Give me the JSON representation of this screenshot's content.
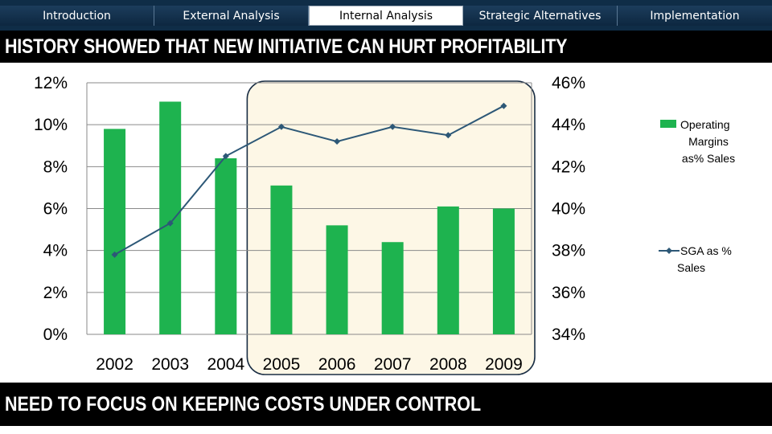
{
  "nav": {
    "tabs": [
      {
        "label": "Introduction",
        "active": false
      },
      {
        "label": "External Analysis",
        "active": false
      },
      {
        "label": "Internal Analysis",
        "active": true
      },
      {
        "label": "Strategic Alternatives",
        "active": false
      },
      {
        "label": "Implementation",
        "active": false
      }
    ]
  },
  "slide": {
    "title": "HISTORY SHOWED THAT NEW INITIATIVE CAN HURT PROFITABILITY",
    "footer": "NEED TO FOCUS ON KEEPING COSTS UNDER CONTROL"
  },
  "colors": {
    "bar": "#1eb34f",
    "line": "#2d5877",
    "highlight_fill": "#fdf7e6",
    "highlight_stroke": "#1a2e44"
  },
  "chart_data": {
    "type": "bar",
    "categories": [
      "2002",
      "2003",
      "2004",
      "2005",
      "2006",
      "2007",
      "2008",
      "2009"
    ],
    "series": [
      {
        "name": "Operating Margins as% Sales",
        "type": "bar",
        "axis": "left",
        "values": [
          9.8,
          11.1,
          8.4,
          7.1,
          5.2,
          4.4,
          6.1,
          6.0
        ]
      },
      {
        "name": "SGA as % Sales",
        "type": "line",
        "axis": "right",
        "values": [
          37.8,
          39.3,
          42.5,
          43.9,
          43.2,
          43.9,
          43.5,
          44.9
        ]
      }
    ],
    "y_left": {
      "min": 0,
      "max": 12,
      "step": 2,
      "ticks": [
        "0%",
        "2%",
        "4%",
        "6%",
        "8%",
        "10%",
        "12%"
      ]
    },
    "y_right": {
      "min": 34,
      "max": 46,
      "step": 2,
      "ticks": [
        "34%",
        "36%",
        "38%",
        "40%",
        "42%",
        "44%",
        "46%"
      ]
    },
    "highlight": {
      "from": "2005",
      "to": "2009"
    },
    "legend": {
      "placement": "right",
      "entries": [
        {
          "label_lines": [
            "Operating",
            "Margins",
            "as% Sales"
          ]
        },
        {
          "label_lines": [
            "SGA as %",
            "Sales"
          ]
        }
      ]
    },
    "title": "",
    "xlabel": "",
    "ylabel": ""
  }
}
